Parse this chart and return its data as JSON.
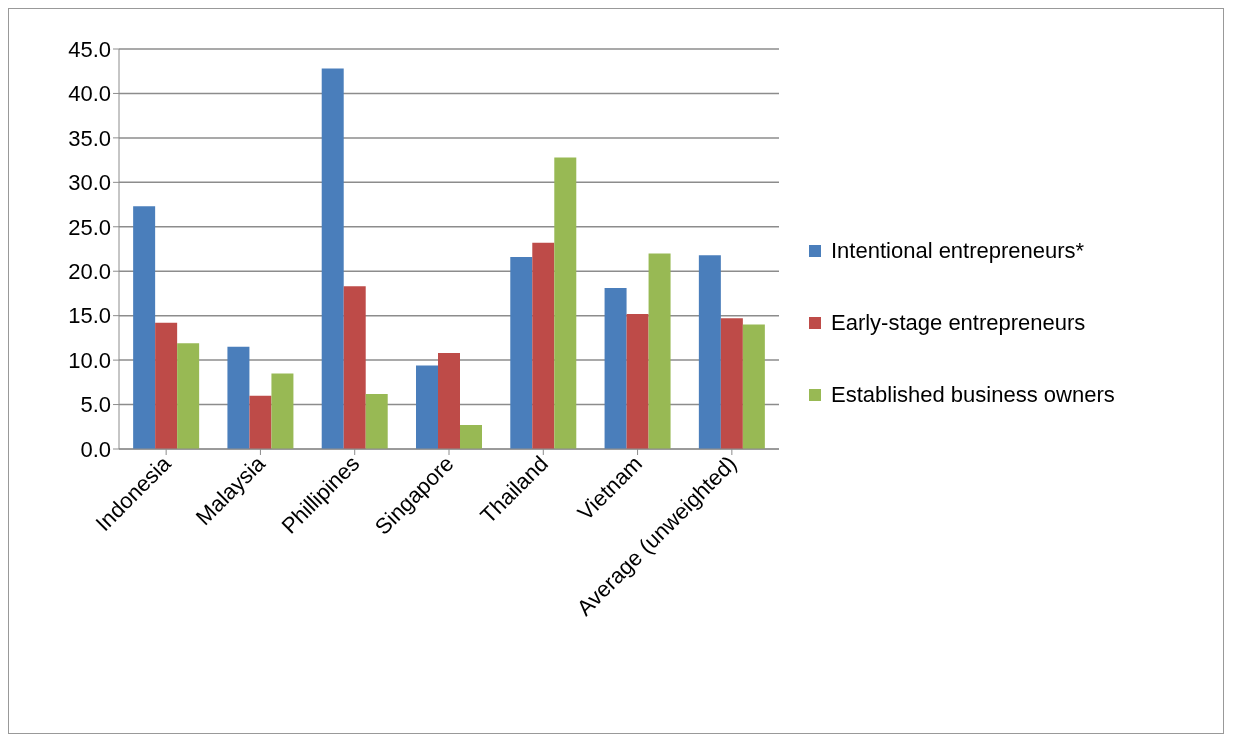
{
  "chart_data": {
    "type": "bar",
    "categories": [
      "Indonesia",
      "Malaysia",
      "Phillipines",
      "Singapore",
      "Thailand",
      "Vietnam",
      "Average (unweighted)"
    ],
    "series": [
      {
        "name": "Intentional entrepreneurs*",
        "color": "#4a7ebb",
        "values": [
          27.3,
          11.5,
          42.8,
          9.4,
          21.6,
          18.1,
          21.8
        ]
      },
      {
        "name": "Early-stage entrepreneurs",
        "color": "#be4b48",
        "values": [
          14.2,
          6.0,
          18.3,
          10.8,
          23.2,
          15.2,
          14.7
        ]
      },
      {
        "name": "Established business owners",
        "color": "#98b954",
        "values": [
          11.9,
          8.5,
          6.2,
          2.7,
          32.8,
          22.0,
          14.0
        ]
      }
    ],
    "ylim": [
      0,
      45
    ],
    "yticks": [
      {
        "value": 0,
        "label": "0.0"
      },
      {
        "value": 5,
        "label": "5.0"
      },
      {
        "value": 10,
        "label": "10.0"
      },
      {
        "value": 15,
        "label": "15.0"
      },
      {
        "value": 20,
        "label": "20.0"
      },
      {
        "value": 25,
        "label": "25.0"
      },
      {
        "value": 30,
        "label": "30.0"
      },
      {
        "value": 35,
        "label": "35.0"
      },
      {
        "value": 40,
        "label": "40.0"
      },
      {
        "value": 45,
        "label": "45.0"
      }
    ],
    "grid": "y",
    "legend": "right"
  }
}
